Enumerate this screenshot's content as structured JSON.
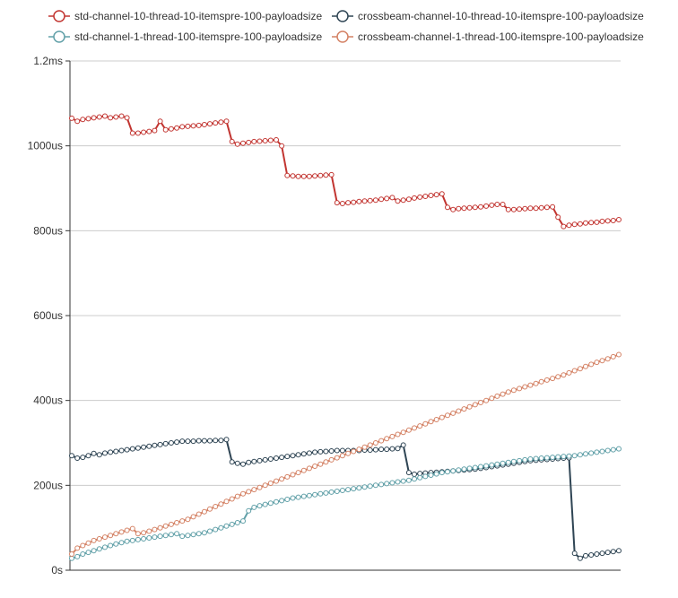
{
  "chart_data": {
    "type": "line",
    "title": "",
    "xlabel": "",
    "ylabel": "",
    "ylim": [
      0,
      1200
    ],
    "yticks": [
      {
        "value": 0,
        "label": "0s"
      },
      {
        "value": 200,
        "label": "200us"
      },
      {
        "value": 400,
        "label": "400us"
      },
      {
        "value": 600,
        "label": "600us"
      },
      {
        "value": 800,
        "label": "800us"
      },
      {
        "value": 1000,
        "label": "1000us"
      },
      {
        "value": 1200,
        "label": "1.2ms"
      }
    ],
    "x": [
      0,
      1,
      2,
      3,
      4,
      5,
      6,
      7,
      8,
      9,
      10,
      11,
      12,
      13,
      14,
      15,
      16,
      17,
      18,
      19,
      20,
      21,
      22,
      23,
      24,
      25,
      26,
      27,
      28,
      29,
      30,
      31,
      32,
      33,
      34,
      35,
      36,
      37,
      38,
      39,
      40,
      41,
      42,
      43,
      44,
      45,
      46,
      47,
      48,
      49,
      50,
      51,
      52,
      53,
      54,
      55,
      56,
      57,
      58,
      59,
      60,
      61,
      62,
      63,
      64,
      65,
      66,
      67,
      68,
      69,
      70,
      71,
      72,
      73,
      74,
      75,
      76,
      77,
      78,
      79,
      80,
      81,
      82,
      83,
      84,
      85,
      86,
      87,
      88,
      89,
      90,
      91,
      92,
      93,
      94,
      95,
      96,
      97,
      98,
      99
    ],
    "legend_position": "top",
    "grid": true,
    "series": [
      {
        "name": "std-channel-10-thread-10-itemspre-100-payloadsize",
        "color": "#c23531",
        "values": [
          1065,
          1058,
          1062,
          1064,
          1066,
          1068,
          1070,
          1066,
          1068,
          1070,
          1066,
          1030,
          1030,
          1032,
          1034,
          1036,
          1058,
          1038,
          1040,
          1042,
          1045,
          1046,
          1047,
          1048,
          1050,
          1052,
          1054,
          1056,
          1058,
          1010,
          1004,
          1006,
          1008,
          1010,
          1011,
          1012,
          1013,
          1014,
          1000,
          930,
          929,
          928,
          928,
          928,
          929,
          930,
          931,
          932,
          866,
          864,
          866,
          867,
          869,
          870,
          871,
          872,
          874,
          876,
          878,
          870,
          872,
          874,
          877,
          879,
          881,
          883,
          885,
          887,
          855,
          850,
          852,
          853,
          854,
          855,
          856,
          858,
          860,
          862,
          862,
          850,
          850,
          851,
          852,
          853,
          853,
          854,
          855,
          856,
          832,
          810,
          813,
          815,
          816,
          818,
          819,
          820,
          822,
          823,
          824,
          826
        ],
        "marker_size": 6
      },
      {
        "name": "crossbeam-channel-10-thread-10-itemspre-100-payloadsize",
        "color": "#2f4554",
        "values": [
          270,
          264,
          266,
          270,
          275,
          272,
          276,
          278,
          280,
          282,
          284,
          286,
          288,
          290,
          292,
          294,
          296,
          298,
          300,
          302,
          304,
          304,
          304,
          305,
          305,
          305,
          306,
          306,
          308,
          255,
          252,
          250,
          254,
          256,
          258,
          260,
          262,
          264,
          266,
          268,
          270,
          272,
          274,
          276,
          278,
          279,
          280,
          281,
          282,
          282,
          282,
          282,
          282,
          283,
          283,
          284,
          285,
          285,
          286,
          287,
          295,
          230,
          226,
          228,
          229,
          230,
          231,
          232,
          233,
          234,
          235,
          236,
          237,
          238,
          240,
          242,
          244,
          246,
          248,
          250,
          252,
          254,
          256,
          258,
          259,
          260,
          261,
          262,
          263,
          264,
          265,
          40,
          28,
          34,
          36,
          38,
          40,
          42,
          44,
          46
        ],
        "marker_size": 6
      },
      {
        "name": "std-channel-1-thread-100-itemspre-100-payloadsize",
        "color": "#61a0a8",
        "values": [
          28,
          32,
          38,
          42,
          46,
          50,
          54,
          58,
          62,
          65,
          68,
          70,
          72,
          74,
          76,
          78,
          80,
          82,
          84,
          86,
          80,
          82,
          84,
          86,
          88,
          92,
          96,
          100,
          104,
          108,
          112,
          116,
          140,
          148,
          152,
          155,
          158,
          161,
          164,
          167,
          170,
          172,
          174,
          176,
          178,
          180,
          182,
          184,
          186,
          188,
          190,
          192,
          194,
          196,
          198,
          200,
          202,
          204,
          206,
          208,
          210,
          212,
          215,
          218,
          221,
          224,
          227,
          230,
          232,
          234,
          236,
          238,
          240,
          242,
          244,
          246,
          248,
          250,
          252,
          254,
          256,
          258,
          260,
          262,
          263,
          264,
          265,
          266,
          267,
          268,
          269,
          270,
          272,
          274,
          276,
          278,
          280,
          282,
          284,
          286
        ],
        "marker_size": 6
      },
      {
        "name": "crossbeam-channel-1-thread-100-itemspre-100-payloadsize",
        "color": "#d48265",
        "values": [
          38,
          52,
          58,
          64,
          70,
          74,
          78,
          82,
          86,
          90,
          94,
          98,
          86,
          88,
          92,
          96,
          100,
          104,
          108,
          112,
          116,
          120,
          126,
          132,
          138,
          144,
          150,
          156,
          162,
          168,
          174,
          180,
          185,
          190,
          195,
          200,
          205,
          210,
          215,
          220,
          225,
          230,
          235,
          240,
          245,
          250,
          255,
          260,
          265,
          270,
          275,
          280,
          285,
          290,
          295,
          300,
          305,
          310,
          315,
          320,
          325,
          330,
          335,
          340,
          345,
          350,
          355,
          360,
          365,
          370,
          375,
          380,
          385,
          390,
          395,
          400,
          405,
          410,
          415,
          420,
          424,
          428,
          432,
          436,
          440,
          444,
          448,
          452,
          456,
          460,
          465,
          470,
          475,
          480,
          485,
          490,
          494,
          498,
          503,
          508
        ],
        "marker_size": 6
      }
    ]
  },
  "legend": {
    "items": [
      {
        "label": "std-channel-10-thread-10-itemspre-100-payloadsize",
        "color": "#c23531"
      },
      {
        "label": "crossbeam-channel-10-thread-10-itemspre-100-payloadsize",
        "color": "#2f4554"
      },
      {
        "label": "std-channel-1-thread-100-itemspre-100-payloadsize",
        "color": "#61a0a8"
      },
      {
        "label": "crossbeam-channel-1-thread-100-itemspre-100-payloadsize",
        "color": "#d48265"
      }
    ]
  }
}
